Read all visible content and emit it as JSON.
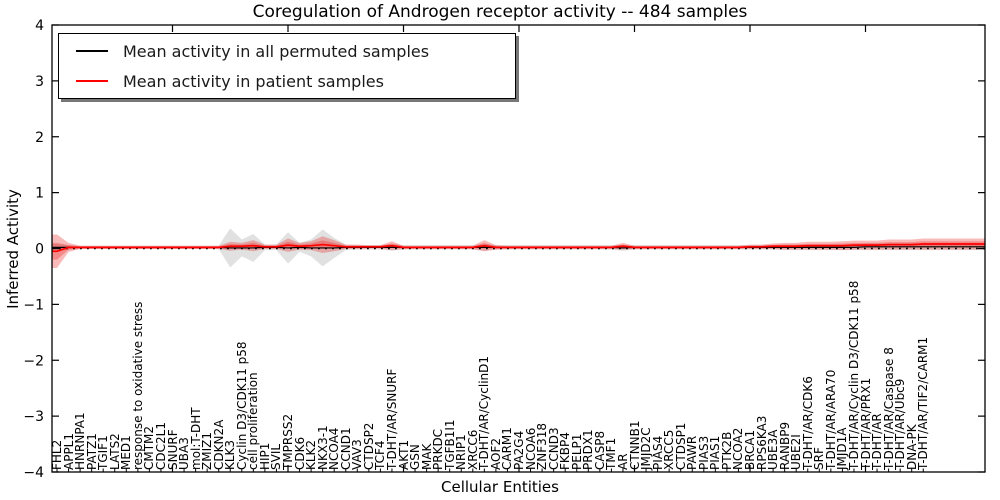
{
  "chart_data": {
    "type": "line",
    "title": "Coregulation of Androgen receptor activity -- 484 samples",
    "xlabel": "Cellular Entities",
    "ylabel": "Inferred Activity",
    "ylim": [
      -4,
      4
    ],
    "yticks": [
      4,
      3,
      2,
      1,
      0,
      -1,
      -2,
      -3,
      -4
    ],
    "grid": false,
    "zero_line": {
      "style": "dotted",
      "color": "#000000",
      "y": 0
    },
    "legend": {
      "position": "upper left",
      "shadow": true,
      "entries": [
        {
          "label": "Mean activity in all permuted samples",
          "color": "#000000"
        },
        {
          "label": "Mean activity in patient samples",
          "color": "#ff0000"
        }
      ]
    },
    "categories": [
      "FHL2",
      "APPL1",
      "HNRNPA1",
      "PATZ1",
      "TGIF1",
      "LATS2",
      "MED1",
      "response to oxidative stress",
      "CMTM2",
      "CDC2L1",
      "SNURF",
      "UBA3",
      "mol:T-DHT",
      "ZMIZ1",
      "CDKN2A",
      "KLK3",
      "Cyclin D3/CDK11 p58",
      "cell proliferation",
      "HIP1",
      "SVIL",
      "TMPRSS2",
      "CDK6",
      "KLK2",
      "NKX3-1",
      "NCOA4",
      "CCND1",
      "VAV3",
      "CTDSP2",
      "TCF4",
      "T-DHT/AR/SNURF",
      "AKT1",
      "GSN",
      "MAK",
      "PRKDC",
      "TGFB1I1",
      "NRIP1",
      "XRCC6",
      "T-DHT/AR/CyclinD1",
      "AOF2",
      "CARM1",
      "PA2G4",
      "NCOA6",
      "ZNF318",
      "CCND3",
      "FKBP4",
      "PELP1",
      "PRDX1",
      "CASP8",
      "TMF1",
      "AR",
      "CTNNB1",
      "JMJD2C",
      "PIAS4",
      "XRCC5",
      "CTDSP1",
      "PAWR",
      "PIAS3",
      "PIAS1",
      "PTK2B",
      "NCOA2",
      "BRCA1",
      "RPS6KA3",
      "UBE3A",
      "RANBP9",
      "UBE2I",
      "T-DHT/AR/CDK6",
      "SRF",
      "T-DHT/AR/ARA70",
      "JMJD1A",
      "T-DHT/AR/Cyclin D3/CDK11 p58",
      "T-DHT/AR/PRX1",
      "T-DHT/AR",
      "T-DHT/AR/Caspase 8",
      "T-DHT/AR/Ubc9",
      "DNA-PK",
      "T-DHT/AR/TIF2/CARM1"
    ],
    "series": [
      {
        "name": "Mean activity in all permuted samples",
        "color": "#000000",
        "values": [
          0.02,
          0.02,
          0.02,
          0.02,
          0.02,
          0.02,
          0.02,
          0.02,
          0.02,
          0.02,
          0.02,
          0.02,
          0.02,
          0.02,
          0.02,
          0.01,
          0.01,
          0.01,
          0.02,
          0.02,
          0.01,
          0.02,
          0.01,
          0.01,
          0.01,
          0.02,
          0.02,
          0.02,
          0.02,
          0.02,
          0.02,
          0.02,
          0.02,
          0.02,
          0.02,
          0.02,
          0.02,
          0.02,
          0.02,
          0.02,
          0.02,
          0.02,
          0.02,
          0.02,
          0.02,
          0.02,
          0.02,
          0.02,
          0.02,
          0.01,
          0.02,
          0.02,
          0.02,
          0.02,
          0.02,
          0.02,
          0.02,
          0.02,
          0.02,
          0.02,
          0.02,
          0.02,
          0.02,
          0.02,
          0.02,
          0.02,
          0.02,
          0.02,
          0.02,
          0.02,
          0.03,
          0.03,
          0.03,
          0.03,
          0.03,
          0.03
        ]
      },
      {
        "name": "Mean activity in patient samples",
        "color": "#ff0000",
        "values": [
          -0.05,
          0.02,
          0.02,
          0.02,
          0.02,
          0.02,
          0.02,
          0.02,
          0.02,
          0.02,
          0.02,
          0.02,
          0.02,
          0.02,
          0.02,
          0.04,
          0.04,
          0.05,
          0.03,
          0.03,
          0.06,
          0.04,
          0.05,
          0.07,
          0.05,
          0.03,
          0.03,
          0.03,
          0.03,
          0.05,
          0.02,
          0.02,
          0.02,
          0.02,
          0.02,
          0.02,
          0.02,
          0.05,
          0.02,
          0.02,
          0.02,
          0.02,
          0.02,
          0.02,
          0.02,
          0.02,
          0.02,
          0.02,
          0.02,
          0.04,
          0.02,
          0.02,
          0.02,
          0.02,
          0.02,
          0.02,
          0.02,
          0.02,
          0.02,
          0.02,
          0.03,
          0.03,
          0.04,
          0.04,
          0.04,
          0.05,
          0.05,
          0.05,
          0.05,
          0.06,
          0.06,
          0.06,
          0.07,
          0.07,
          0.07,
          0.08
        ]
      }
    ],
    "bands": [
      {
        "name": "permuted-samples-spread",
        "color": "rgba(120,120,120,0.22)",
        "center_series": 0,
        "half_widths": [
          0.06,
          0.04,
          0.03,
          0.03,
          0.03,
          0.03,
          0.03,
          0.03,
          0.03,
          0.03,
          0.03,
          0.03,
          0.03,
          0.03,
          0.03,
          0.35,
          0.15,
          0.25,
          0.05,
          0.05,
          0.28,
          0.08,
          0.15,
          0.33,
          0.18,
          0.05,
          0.04,
          0.04,
          0.04,
          0.06,
          0.04,
          0.04,
          0.04,
          0.04,
          0.04,
          0.04,
          0.04,
          0.06,
          0.04,
          0.04,
          0.04,
          0.04,
          0.04,
          0.04,
          0.04,
          0.04,
          0.04,
          0.04,
          0.04,
          0.05,
          0.04,
          0.04,
          0.04,
          0.04,
          0.04,
          0.04,
          0.04,
          0.04,
          0.04,
          0.04,
          0.04,
          0.04,
          0.04,
          0.05,
          0.05,
          0.05,
          0.05,
          0.05,
          0.05,
          0.05,
          0.06,
          0.06,
          0.06,
          0.06,
          0.06,
          0.06
        ]
      },
      {
        "name": "patient-samples-spread",
        "color": "rgba(235,25,25,0.30)",
        "center_series": 1,
        "half_widths": [
          0.3,
          0.08,
          0.03,
          0.03,
          0.03,
          0.03,
          0.03,
          0.03,
          0.03,
          0.03,
          0.03,
          0.03,
          0.03,
          0.03,
          0.03,
          0.08,
          0.06,
          0.1,
          0.04,
          0.04,
          0.12,
          0.06,
          0.08,
          0.15,
          0.1,
          0.04,
          0.04,
          0.03,
          0.03,
          0.08,
          0.03,
          0.03,
          0.03,
          0.03,
          0.03,
          0.03,
          0.03,
          0.1,
          0.04,
          0.03,
          0.03,
          0.03,
          0.03,
          0.03,
          0.03,
          0.03,
          0.03,
          0.03,
          0.03,
          0.06,
          0.03,
          0.03,
          0.03,
          0.03,
          0.03,
          0.03,
          0.03,
          0.03,
          0.03,
          0.03,
          0.04,
          0.04,
          0.05,
          0.06,
          0.06,
          0.07,
          0.07,
          0.07,
          0.08,
          0.08,
          0.08,
          0.08,
          0.09,
          0.09,
          0.09,
          0.1
        ]
      }
    ]
  }
}
